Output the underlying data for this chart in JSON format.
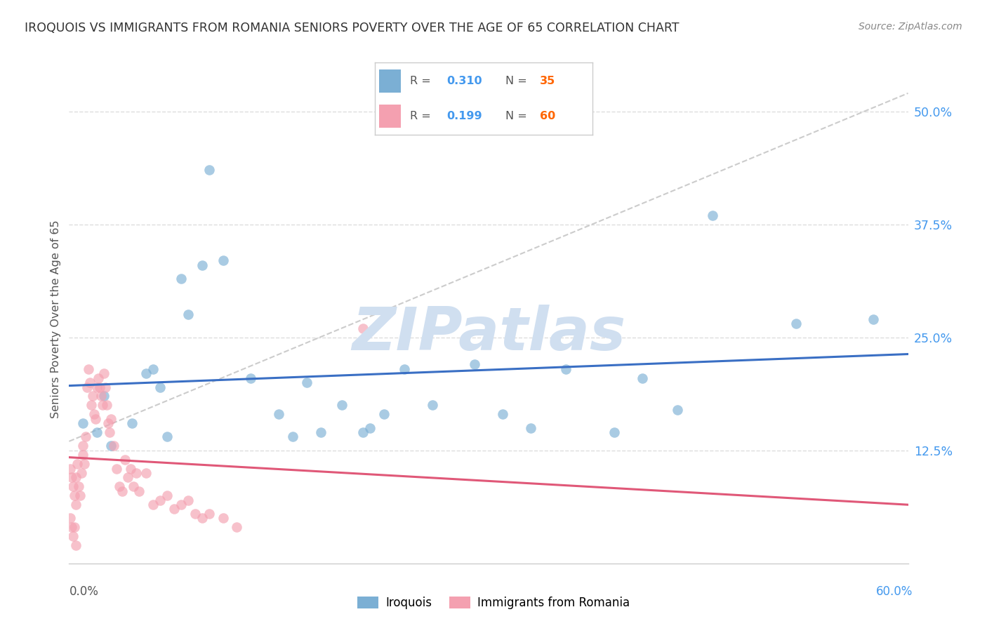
{
  "title": "IROQUOIS VS IMMIGRANTS FROM ROMANIA SENIORS POVERTY OVER THE AGE OF 65 CORRELATION CHART",
  "source": "Source: ZipAtlas.com",
  "ylabel": "Seniors Poverty Over the Age of 65",
  "ytick_values": [
    0.125,
    0.25,
    0.375,
    0.5
  ],
  "ytick_labels": [
    "12.5%",
    "25.0%",
    "37.5%",
    "50.0%"
  ],
  "xlim": [
    0.0,
    0.6
  ],
  "ylim": [
    0.0,
    0.54
  ],
  "legend_r_iroquois": "0.310",
  "legend_n_iroquois": "35",
  "legend_r_romania": "0.199",
  "legend_n_romania": "60",
  "iroquois_color": "#7BAFD4",
  "romania_color": "#F4A0B0",
  "trendline_iroquois_color": "#3A6FC4",
  "trendline_romania_color": "#E05878",
  "trendline_dashed_color": "#C8C8C8",
  "watermark_text": "ZIPatlas",
  "watermark_color": "#D0DFF0",
  "iroquois_x": [
    0.01,
    0.02,
    0.025,
    0.03,
    0.045,
    0.055,
    0.06,
    0.065,
    0.07,
    0.08,
    0.085,
    0.095,
    0.1,
    0.11,
    0.13,
    0.15,
    0.16,
    0.17,
    0.18,
    0.195,
    0.21,
    0.215,
    0.225,
    0.24,
    0.26,
    0.29,
    0.31,
    0.33,
    0.355,
    0.39,
    0.41,
    0.435,
    0.46,
    0.52,
    0.575
  ],
  "iroquois_y": [
    0.155,
    0.145,
    0.185,
    0.13,
    0.155,
    0.21,
    0.215,
    0.195,
    0.14,
    0.315,
    0.275,
    0.33,
    0.435,
    0.335,
    0.205,
    0.165,
    0.14,
    0.2,
    0.145,
    0.175,
    0.145,
    0.15,
    0.165,
    0.215,
    0.175,
    0.22,
    0.165,
    0.15,
    0.215,
    0.145,
    0.205,
    0.17,
    0.385,
    0.265,
    0.27
  ],
  "romania_x": [
    0.001,
    0.002,
    0.003,
    0.004,
    0.005,
    0.005,
    0.006,
    0.007,
    0.008,
    0.009,
    0.01,
    0.01,
    0.011,
    0.012,
    0.013,
    0.014,
    0.015,
    0.016,
    0.017,
    0.018,
    0.019,
    0.02,
    0.021,
    0.022,
    0.023,
    0.024,
    0.025,
    0.026,
    0.027,
    0.028,
    0.029,
    0.03,
    0.032,
    0.034,
    0.036,
    0.038,
    0.04,
    0.042,
    0.044,
    0.046,
    0.048,
    0.05,
    0.055,
    0.06,
    0.065,
    0.07,
    0.075,
    0.08,
    0.085,
    0.09,
    0.095,
    0.1,
    0.11,
    0.12,
    0.001,
    0.002,
    0.003,
    0.004,
    0.005,
    0.21
  ],
  "romania_y": [
    0.105,
    0.095,
    0.085,
    0.075,
    0.065,
    0.095,
    0.11,
    0.085,
    0.075,
    0.1,
    0.12,
    0.13,
    0.11,
    0.14,
    0.195,
    0.215,
    0.2,
    0.175,
    0.185,
    0.165,
    0.16,
    0.195,
    0.205,
    0.195,
    0.185,
    0.175,
    0.21,
    0.195,
    0.175,
    0.155,
    0.145,
    0.16,
    0.13,
    0.105,
    0.085,
    0.08,
    0.115,
    0.095,
    0.105,
    0.085,
    0.1,
    0.08,
    0.1,
    0.065,
    0.07,
    0.075,
    0.06,
    0.065,
    0.07,
    0.055,
    0.05,
    0.055,
    0.05,
    0.04,
    0.05,
    0.04,
    0.03,
    0.04,
    0.02,
    0.26
  ]
}
